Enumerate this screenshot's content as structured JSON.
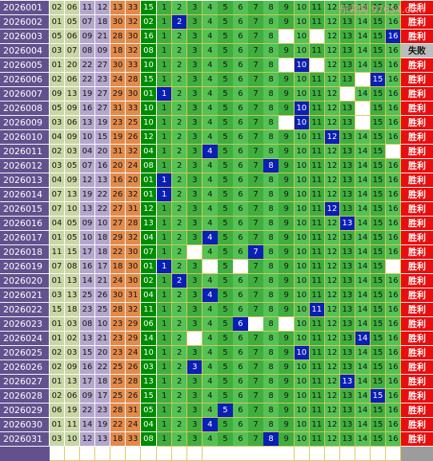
{
  "watermark": "乐彩网 97654.com",
  "results": {
    "win": "胜利",
    "fail": "失败"
  },
  "colors": {
    "period_bg": "#63518e",
    "hit": "#0a1fb4",
    "win_bg": "#e80e0e",
    "fail_bg": "#bdbdbd",
    "trail_bg": "#008c00"
  },
  "position_labels": [
    "1",
    "2",
    "3",
    "4",
    "5",
    "6",
    "7",
    "8",
    "9",
    "10",
    "11",
    "12",
    "13",
    "14",
    "15",
    "16"
  ],
  "rows": [
    {
      "period": "2026001",
      "balls": [
        "02",
        "06",
        "11",
        "12",
        "13",
        "33"
      ],
      "trail": "15",
      "hit": null,
      "result": "win"
    },
    {
      "period": "2026002",
      "balls": [
        "01",
        "05",
        "07",
        "18",
        "30",
        "32"
      ],
      "trail": "02",
      "hit": 2,
      "result": "win"
    },
    {
      "period": "2026003",
      "balls": [
        "05",
        "06",
        "09",
        "21",
        "28",
        "30"
      ],
      "trail": "16",
      "hit": 16,
      "result": "win"
    },
    {
      "period": "2026004",
      "balls": [
        "03",
        "07",
        "08",
        "09",
        "18",
        "32"
      ],
      "trail": "08",
      "hit": null,
      "result": "fail"
    },
    {
      "period": "2026005",
      "balls": [
        "01",
        "20",
        "22",
        "27",
        "30",
        "33"
      ],
      "trail": "10",
      "hit": 10,
      "result": "win"
    },
    {
      "period": "2026006",
      "balls": [
        "02",
        "06",
        "22",
        "23",
        "24",
        "28"
      ],
      "trail": "15",
      "hit": 15,
      "result": "win"
    },
    {
      "period": "2026007",
      "balls": [
        "09",
        "13",
        "19",
        "27",
        "29",
        "30"
      ],
      "trail": "01",
      "hit": 1,
      "result": "win"
    },
    {
      "period": "2026008",
      "balls": [
        "05",
        "09",
        "16",
        "27",
        "31",
        "33"
      ],
      "trail": "10",
      "hit": 10,
      "result": "win"
    },
    {
      "period": "2026009",
      "balls": [
        "03",
        "06",
        "13",
        "19",
        "23",
        "25"
      ],
      "trail": "10",
      "hit": 10,
      "result": "win"
    },
    {
      "period": "2026010",
      "balls": [
        "04",
        "09",
        "10",
        "15",
        "19",
        "26"
      ],
      "trail": "12",
      "hit": 12,
      "result": "win"
    },
    {
      "period": "2026011",
      "balls": [
        "02",
        "03",
        "04",
        "20",
        "31",
        "32"
      ],
      "trail": "04",
      "hit": 4,
      "result": "win"
    },
    {
      "period": "2026012",
      "balls": [
        "03",
        "05",
        "07",
        "16",
        "20",
        "24"
      ],
      "trail": "08",
      "hit": 8,
      "result": "win"
    },
    {
      "period": "2026013",
      "balls": [
        "04",
        "09",
        "12",
        "13",
        "16",
        "20"
      ],
      "trail": "01",
      "hit": 1,
      "result": "win"
    },
    {
      "period": "2026014",
      "balls": [
        "07",
        "13",
        "19",
        "22",
        "26",
        "32"
      ],
      "trail": "01",
      "hit": 1,
      "result": "win"
    },
    {
      "period": "2026015",
      "balls": [
        "07",
        "10",
        "13",
        "22",
        "27",
        "31"
      ],
      "trail": "12",
      "hit": 12,
      "result": "win"
    },
    {
      "period": "2026016",
      "balls": [
        "04",
        "05",
        "09",
        "10",
        "27",
        "28"
      ],
      "trail": "13",
      "hit": 13,
      "result": "win"
    },
    {
      "period": "2026017",
      "balls": [
        "01",
        "05",
        "10",
        "18",
        "29",
        "32"
      ],
      "trail": "04",
      "hit": 4,
      "result": "win"
    },
    {
      "period": "2026018",
      "balls": [
        "11",
        "15",
        "17",
        "18",
        "22",
        "30"
      ],
      "trail": "07",
      "hit": 7,
      "result": "win"
    },
    {
      "period": "2026019",
      "balls": [
        "07",
        "08",
        "16",
        "17",
        "18",
        "30"
      ],
      "trail": "01",
      "hit": 1,
      "result": "win"
    },
    {
      "period": "2026020",
      "balls": [
        "01",
        "13",
        "14",
        "21",
        "24",
        "30"
      ],
      "trail": "02",
      "hit": 2,
      "result": "win"
    },
    {
      "period": "2026021",
      "balls": [
        "03",
        "13",
        "25",
        "26",
        "30",
        "31"
      ],
      "trail": "04",
      "hit": 4,
      "result": "win"
    },
    {
      "period": "2026022",
      "balls": [
        "15",
        "18",
        "23",
        "25",
        "28",
        "32"
      ],
      "trail": "11",
      "hit": 11,
      "result": "win"
    },
    {
      "period": "2026023",
      "balls": [
        "01",
        "03",
        "08",
        "10",
        "23",
        "29"
      ],
      "trail": "06",
      "hit": 6,
      "result": "win"
    },
    {
      "period": "2026024",
      "balls": [
        "01",
        "02",
        "13",
        "21",
        "23",
        "29"
      ],
      "trail": "14",
      "hit": 14,
      "result": "win"
    },
    {
      "period": "2026025",
      "balls": [
        "02",
        "03",
        "15",
        "20",
        "23",
        "24"
      ],
      "trail": "10",
      "hit": 10,
      "result": "win"
    },
    {
      "period": "2026026",
      "balls": [
        "02",
        "09",
        "16",
        "22",
        "25",
        "26"
      ],
      "trail": "03",
      "hit": 3,
      "result": "win"
    },
    {
      "period": "2026027",
      "balls": [
        "01",
        "13",
        "17",
        "18",
        "25",
        "28"
      ],
      "trail": "13",
      "hit": 13,
      "result": "win"
    },
    {
      "period": "2026028",
      "balls": [
        "02",
        "06",
        "09",
        "17",
        "25",
        "26"
      ],
      "trail": "15",
      "hit": 15,
      "result": "win"
    },
    {
      "period": "2026029",
      "balls": [
        "06",
        "19",
        "22",
        "23",
        "28",
        "31"
      ],
      "trail": "05",
      "hit": 5,
      "result": "win"
    },
    {
      "period": "2026030",
      "balls": [
        "01",
        "11",
        "14",
        "19",
        "22",
        "24"
      ],
      "trail": "04",
      "hit": 4,
      "result": "win"
    },
    {
      "period": "2026031",
      "balls": [
        "03",
        "10",
        "12",
        "13",
        "18",
        "33"
      ],
      "trail": "08",
      "hit": 8,
      "result": "win"
    }
  ],
  "blanks": [
    [],
    [],
    [
      9,
      11
    ],
    [],
    [
      9,
      11
    ],
    [
      14
    ],
    [
      13
    ],
    [
      14
    ],
    [
      9,
      14
    ],
    [],
    [
      16
    ],
    [],
    [],
    [],
    [],
    [],
    [],
    [
      3
    ],
    [
      4,
      6,
      16
    ],
    [],
    [],
    [],
    [
      7,
      9
    ],
    [
      3
    ],
    [],
    [],
    [],
    [],
    [],
    [],
    []
  ]
}
